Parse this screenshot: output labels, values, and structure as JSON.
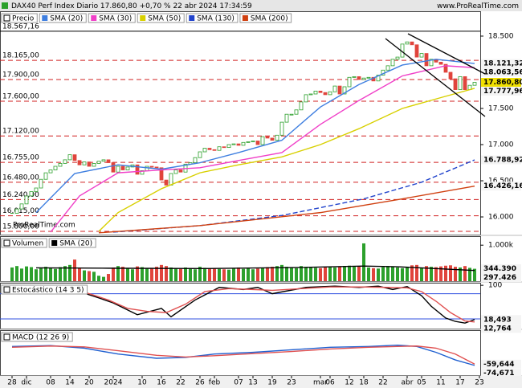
{
  "header": {
    "title": "DAX40 Perf Index Diario 17.860,80 +0,70 % 22 abr 2024 17:34:59",
    "site": "www.ProRealTime.com"
  },
  "chart_data": [
    {
      "type": "candlestick",
      "title": "Precio",
      "watermark": "ProRealTime.com",
      "up_color": "#2ca02c",
      "down_color": "#e0443c",
      "label_bg": "#f0e000",
      "categories": [
        "28",
        null,
        null,
        "dic",
        null,
        null,
        null,
        null,
        "08",
        null,
        null,
        null,
        "14",
        null,
        null,
        null,
        "20",
        null,
        null,
        null,
        null,
        "2024",
        null,
        null,
        null,
        null,
        null,
        "10",
        null,
        null,
        null,
        "16",
        null,
        null,
        null,
        "22",
        null,
        null,
        null,
        "26",
        null,
        null,
        "feb",
        null,
        null,
        null,
        null,
        "07",
        null,
        null,
        "13",
        null,
        null,
        null,
        "19",
        null,
        null,
        null,
        "23",
        null,
        null,
        null,
        null,
        null,
        "mar",
        null,
        "06",
        null,
        null,
        null,
        "12",
        null,
        null,
        "18",
        null,
        null,
        null,
        "22",
        null,
        null,
        null,
        null,
        "abr",
        null,
        null,
        "05",
        null,
        null,
        null,
        "11",
        null,
        null,
        null,
        "17",
        null,
        null,
        null,
        "23"
      ],
      "values": [
        16050,
        16110,
        16180,
        16290,
        16350,
        16400,
        16520,
        16610,
        16650,
        16700,
        16740,
        16790,
        16860,
        16780,
        16720,
        16760,
        16700,
        16740,
        16770,
        16790,
        16750,
        16620,
        16700,
        16650,
        16690,
        16720,
        16590,
        16640,
        16700,
        16690,
        16680,
        16510,
        16440,
        16600,
        16650,
        16620,
        16730,
        16750,
        16820,
        16900,
        16950,
        16930,
        16920,
        16970,
        16960,
        17000,
        17010,
        16990,
        17030,
        17040,
        17050,
        17000,
        17110,
        17090,
        17060,
        17130,
        17310,
        17420,
        17420,
        17480,
        17590,
        17690,
        17700,
        17740,
        17720,
        17690,
        17730,
        17810,
        17700,
        17800,
        17930,
        17940,
        17900,
        17920,
        17930,
        17880,
        17960,
        18030,
        18090,
        18180,
        18210,
        18390,
        18420,
        18380,
        18210,
        18260,
        18090,
        18180,
        18140,
        18110,
        18000,
        17910,
        17760,
        17940,
        17760,
        17820,
        17860.8,
        null
      ],
      "value_labels": [
        null,
        null,
        null,
        null,
        null,
        null,
        null,
        null,
        null,
        null,
        null,
        null,
        null,
        null,
        null,
        null,
        null,
        null,
        null,
        null,
        null,
        null,
        null,
        null,
        null,
        null,
        null,
        null,
        null,
        null,
        null,
        null,
        null,
        null,
        null,
        null,
        null,
        null,
        null,
        null,
        null,
        null,
        null,
        null,
        null,
        null,
        null,
        null,
        null,
        null,
        null,
        null,
        null,
        null,
        null,
        null,
        null,
        null,
        null,
        null,
        null,
        null,
        null,
        null,
        null,
        null,
        null,
        null,
        null,
        null,
        null,
        null,
        null,
        null,
        null,
        null,
        null,
        null,
        null,
        null,
        null,
        null,
        null,
        null,
        null,
        null,
        null,
        null,
        null,
        null,
        null,
        null,
        null,
        null,
        null,
        null,
        "17.860,80",
        null
      ],
      "ylim": [
        15756,
        18844
      ],
      "yticks": [
        {
          "value": 18500,
          "label": "18.500"
        },
        {
          "value": 18000,
          "label": "18.000"
        },
        {
          "value": 17500,
          "label": "17.500"
        },
        {
          "value": 17000,
          "label": "17.000"
        },
        {
          "value": 16500,
          "label": "16.500"
        },
        {
          "value": 16000,
          "label": "16.000"
        }
      ],
      "levels": [
        {
          "value": 18567.16,
          "label": "18.567,16",
          "color": "#000000",
          "dashed": false
        },
        {
          "value": 18165,
          "label": "18.165,00",
          "color": "#d02020",
          "dashed": true
        },
        {
          "value": 17900,
          "label": "17.900,00",
          "color": "#d02020",
          "dashed": true
        },
        {
          "value": 17600,
          "label": "17.600,00",
          "color": "#d02020",
          "dashed": true
        },
        {
          "value": 17120,
          "label": "17.120,00",
          "color": "#d02020",
          "dashed": true
        },
        {
          "value": 16755,
          "label": "16.755,00",
          "color": "#d02020",
          "dashed": true
        },
        {
          "value": 16480,
          "label": "16.480,00",
          "color": "#d02020",
          "dashed": true
        },
        {
          "value": 16240,
          "label": "16.240,00",
          "color": "#d02020",
          "dashed": true
        },
        {
          "value": 16015,
          "label": "16.015,00",
          "color": "#d02020",
          "dashed": true
        },
        {
          "value": 15800,
          "label": "15.800,00",
          "color": "#d02020",
          "dashed": true
        }
      ],
      "series": [
        {
          "name": "SMA (20)",
          "color": "#3f7fe0",
          "x": [
            5,
            13,
            22,
            31,
            39,
            47,
            56,
            64,
            72,
            81,
            88,
            96
          ],
          "values": [
            16060,
            16600,
            16720,
            16660,
            16750,
            16890,
            17060,
            17520,
            17830,
            18100,
            18180,
            18121.32
          ],
          "value_labels": [
            null,
            null,
            null,
            null,
            null,
            null,
            null,
            null,
            null,
            null,
            null,
            "18.121,32"
          ]
        },
        {
          "name": "SMA (30)",
          "color": "#f040c8",
          "x": [
            8,
            14,
            22,
            31,
            39,
            47,
            56,
            64,
            72,
            81,
            90,
            96
          ],
          "values": [
            15790,
            16290,
            16610,
            16650,
            16680,
            16780,
            16890,
            17280,
            17610,
            17950,
            18090,
            18063.56
          ],
          "value_labels": [
            null,
            null,
            null,
            null,
            null,
            null,
            null,
            null,
            null,
            null,
            null,
            "18.063,56"
          ]
        },
        {
          "name": "SMA (50)",
          "color": "#d8d000",
          "x": [
            18,
            22,
            31,
            39,
            47,
            56,
            64,
            72,
            81,
            89,
            96
          ],
          "values": [
            15800,
            16060,
            16390,
            16610,
            16720,
            16830,
            17000,
            17220,
            17500,
            17650,
            17777.96
          ],
          "value_labels": [
            null,
            null,
            null,
            null,
            null,
            null,
            null,
            null,
            null,
            null,
            "17.777,96"
          ]
        },
        {
          "name": "SMA (130)",
          "color": "#2244cc",
          "dashed": true,
          "x": [
            21,
            39,
            56,
            73,
            85,
            96
          ],
          "values": [
            15790,
            15880,
            16020,
            16250,
            16480,
            16788.92
          ],
          "value_labels": [
            null,
            null,
            null,
            null,
            null,
            "16.788,92"
          ]
        },
        {
          "name": "SMA (200)",
          "color": "#d04010",
          "x": [
            18,
            39,
            64,
            81,
            96
          ],
          "values": [
            15780,
            15880,
            16060,
            16250,
            16426.16
          ],
          "value_labels": [
            null,
            null,
            null,
            null,
            "16.426,16"
          ]
        }
      ]
    },
    {
      "type": "bar",
      "title": "Volumen",
      "values": [
        380000,
        420000,
        350000,
        410000,
        390000,
        330000,
        370000,
        400000,
        360000,
        340000,
        390000,
        420000,
        450000,
        600000,
        380000,
        300000,
        280000,
        260000,
        150000,
        120000,
        200000,
        380000,
        420000,
        400000,
        360000,
        330000,
        410000,
        390000,
        350000,
        370000,
        400000,
        450000,
        420000,
        380000,
        360000,
        340000,
        380000,
        350000,
        330000,
        400000,
        370000,
        350000,
        360000,
        340000,
        330000,
        320000,
        350000,
        380000,
        340000,
        360000,
        330000,
        350000,
        370000,
        390000,
        400000,
        420000,
        450000,
        400000,
        380000,
        360000,
        420000,
        400000,
        380000,
        370000,
        360000,
        390000,
        410000,
        380000,
        400000,
        420000,
        430000,
        400000,
        410000,
        1050000,
        380000,
        360000,
        350000,
        390000,
        420000,
        400000,
        380000,
        360000,
        400000,
        440000,
        450000,
        380000,
        420000,
        400000,
        390000,
        410000,
        430000,
        440000,
        400000,
        380000,
        420000,
        370000,
        344390,
        null
      ],
      "value_labels": [
        null,
        null,
        null,
        null,
        null,
        null,
        null,
        null,
        null,
        null,
        null,
        null,
        null,
        null,
        null,
        null,
        null,
        null,
        null,
        null,
        null,
        null,
        null,
        null,
        null,
        null,
        null,
        null,
        null,
        null,
        null,
        null,
        null,
        null,
        null,
        null,
        null,
        null,
        null,
        null,
        null,
        null,
        null,
        null,
        null,
        null,
        null,
        null,
        null,
        null,
        null,
        null,
        null,
        null,
        null,
        null,
        null,
        null,
        null,
        null,
        null,
        null,
        null,
        null,
        null,
        null,
        null,
        null,
        null,
        null,
        null,
        null,
        null,
        null,
        null,
        null,
        null,
        null,
        null,
        null,
        null,
        null,
        null,
        null,
        null,
        null,
        null,
        null,
        null,
        null,
        null,
        null,
        null,
        null,
        null,
        null,
        "344.390",
        null
      ],
      "ylim": [
        0,
        1250000
      ],
      "yticks": [
        {
          "value": 1000000,
          "label": "1.000k"
        }
      ],
      "series": [
        {
          "name": "SMA (20)",
          "color": "#000000",
          "x": [
            5,
            20,
            40,
            60,
            73,
            80,
            96
          ],
          "values": [
            370000,
            360000,
            350000,
            380000,
            420000,
            400000,
            297426
          ],
          "value_labels": [
            null,
            null,
            null,
            null,
            null,
            null,
            "297.426"
          ]
        }
      ]
    },
    {
      "type": "line",
      "title": "Estocástico (14 3 5)",
      "ylim": [
        -3,
        106
      ],
      "yticks": [
        100
      ],
      "levels": [
        {
          "value": 80,
          "color": "#3050e0"
        },
        {
          "value": 20,
          "color": "#3050e0"
        }
      ],
      "series": [
        {
          "color": "#000000",
          "x": [
            0,
            5,
            11,
            14,
            18,
            21,
            26,
            31,
            33,
            38,
            43,
            48,
            51,
            54,
            61,
            67,
            72,
            76,
            79,
            82,
            85,
            87,
            90,
            92,
            94,
            96
          ],
          "values": [
            98,
            97,
            96,
            85,
            70,
            58,
            30,
            45,
            25,
            65,
            95,
            90,
            95,
            80,
            95,
            98,
            95,
            98,
            90,
            97,
            75,
            50,
            22,
            14,
            10,
            18.493
          ],
          "value_labels": [
            null,
            null,
            null,
            null,
            null,
            null,
            null,
            null,
            null,
            null,
            null,
            null,
            null,
            null,
            null,
            null,
            null,
            null,
            null,
            null,
            null,
            null,
            null,
            null,
            null,
            "18,493"
          ]
        },
        {
          "color": "#e05050",
          "x": [
            0,
            6,
            12,
            16,
            20,
            24,
            28,
            32,
            36,
            40,
            45,
            50,
            54,
            60,
            66,
            72,
            78,
            82,
            85,
            88,
            91,
            94,
            96
          ],
          "values": [
            95,
            97,
            92,
            80,
            65,
            45,
            38,
            35,
            55,
            85,
            92,
            90,
            88,
            92,
            96,
            96,
            95,
            94,
            85,
            62,
            35,
            15,
            12.764
          ],
          "value_labels": [
            null,
            null,
            null,
            null,
            null,
            null,
            null,
            null,
            null,
            null,
            null,
            null,
            null,
            null,
            null,
            null,
            null,
            null,
            null,
            null,
            null,
            null,
            "12,764"
          ]
        }
      ]
    },
    {
      "type": "line",
      "title": "MACD (12 26 9)",
      "ylim": [
        -190,
        343
      ],
      "yticks": [],
      "series": [
        {
          "color": "#2060d0",
          "x": [
            0,
            8,
            15,
            22,
            30,
            36,
            42,
            50,
            58,
            66,
            74,
            80,
            84,
            88,
            92,
            96
          ],
          "values": [
            150,
            160,
            130,
            60,
            10,
            20,
            60,
            80,
            110,
            140,
            150,
            165,
            150,
            80,
            -10,
            -74.671
          ],
          "value_labels": [
            null,
            null,
            null,
            null,
            null,
            null,
            null,
            null,
            null,
            null,
            null,
            null,
            null,
            null,
            null,
            "-74,671"
          ]
        },
        {
          "color": "#e05050",
          "x": [
            0,
            8,
            15,
            22,
            30,
            36,
            42,
            50,
            58,
            66,
            74,
            80,
            84,
            88,
            92,
            96
          ],
          "values": [
            140,
            155,
            145,
            100,
            45,
            25,
            40,
            65,
            90,
            120,
            140,
            150,
            155,
            130,
            60,
            -59.644
          ],
          "value_labels": [
            null,
            null,
            null,
            null,
            null,
            null,
            null,
            null,
            null,
            null,
            null,
            null,
            null,
            null,
            null,
            "-59,644"
          ]
        }
      ]
    }
  ]
}
